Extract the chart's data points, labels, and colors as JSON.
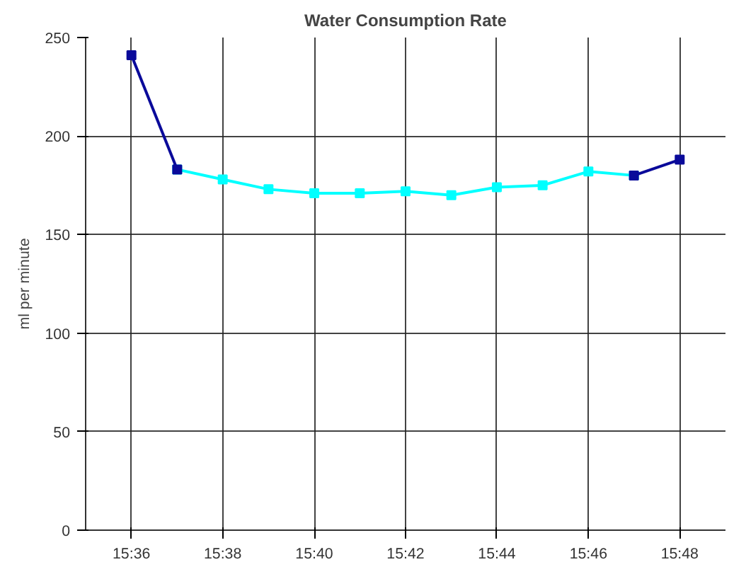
{
  "chart_data": {
    "type": "line",
    "title": "Water Consumption Rate",
    "ylabel": "ml per minute",
    "xlim": [
      15.5833,
      15.8167
    ],
    "xticks": [
      {
        "value": 15.6,
        "label": "15:36"
      },
      {
        "value": 15.6333,
        "label": "15:38"
      },
      {
        "value": 15.6667,
        "label": "15:40"
      },
      {
        "value": 15.7,
        "label": "15:42"
      },
      {
        "value": 15.7333,
        "label": "15:44"
      },
      {
        "value": 15.7667,
        "label": "15:46"
      },
      {
        "value": 15.8,
        "label": "15:48"
      }
    ],
    "ylim": [
      0,
      250
    ],
    "yticks": [
      0,
      50,
      100,
      150,
      200,
      250
    ],
    "grid": true,
    "marker": "square",
    "line_style": "solid",
    "series": [
      {
        "color": "#00ffff",
        "x": [
          15.6167,
          15.6333,
          15.65,
          15.6667,
          15.6833,
          15.7,
          15.7167,
          15.7333,
          15.75,
          15.7667,
          15.7833
        ],
        "values": [
          183,
          178,
          173,
          171,
          171,
          172,
          170,
          174,
          175,
          182,
          180
        ]
      },
      {
        "color": "#0a0a9a",
        "x": [
          15.6,
          15.6167
        ],
        "values": [
          241,
          183
        ]
      },
      {
        "color": "#0a0a9a",
        "x": [
          15.7833,
          15.8
        ],
        "values": [
          180,
          188
        ]
      }
    ]
  }
}
